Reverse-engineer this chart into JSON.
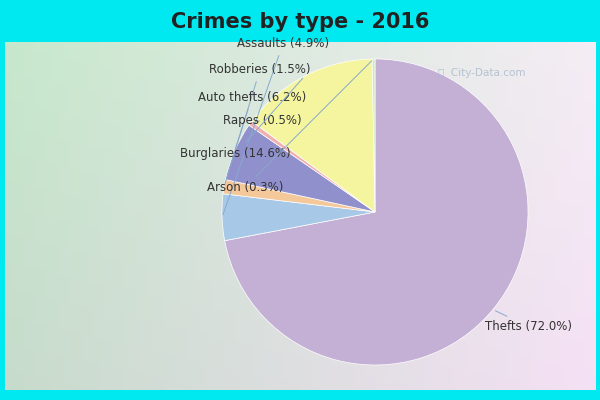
{
  "title": "Crimes by type - 2016",
  "labels": [
    "Thefts",
    "Assaults",
    "Robberies",
    "Auto thefts",
    "Rapes",
    "Burglaries",
    "Arson"
  ],
  "values": [
    72.0,
    4.9,
    1.5,
    6.2,
    0.5,
    14.6,
    0.3
  ],
  "colors": [
    "#c5b0d5",
    "#a8c8e8",
    "#f5c89a",
    "#9090cc",
    "#f0b0b0",
    "#f5f5a0",
    "#d0eac0"
  ],
  "bg_cyan": "#00e8f0",
  "bg_chart_left": "#c8e8cc",
  "bg_chart_right": "#e8eef4",
  "title_fontsize": 15,
  "label_fontsize": 8.5,
  "watermark": "City-Data.com"
}
